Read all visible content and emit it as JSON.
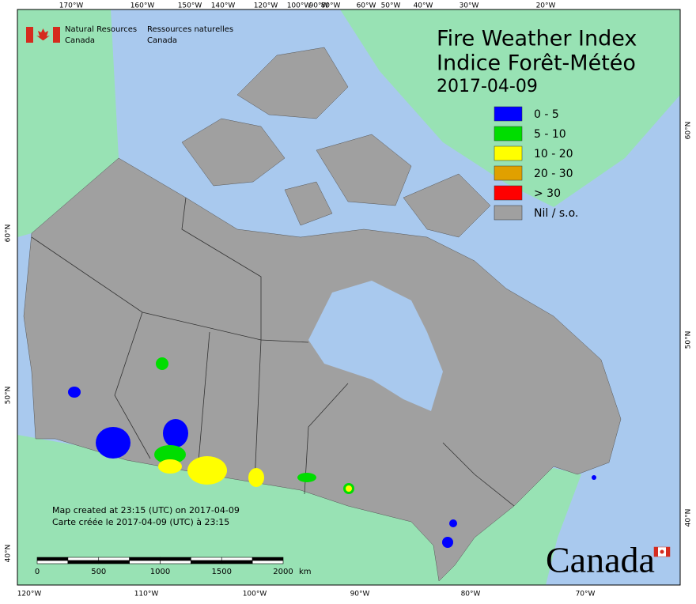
{
  "agency": {
    "en": [
      "Natural Resources",
      "Canada"
    ],
    "fr": [
      "Ressources naturelles",
      "Canada"
    ]
  },
  "header": {
    "title": "Fire Weather Index",
    "title_fr": "Indice Forêt-Météo",
    "date": "2017-04-09"
  },
  "legend": [
    {
      "label": "0 - 5",
      "color": "#0000ff"
    },
    {
      "label": "5 - 10",
      "color": "#00dd00"
    },
    {
      "label": "10 - 20",
      "color": "#ffff00"
    },
    {
      "label": "20 - 30",
      "color": "#e0a000"
    },
    {
      "label": "> 30",
      "color": "#ff0000"
    },
    {
      "label": "Nil / s.o.",
      "color": "#a0a0a0"
    }
  ],
  "notes": [
    "Map created at 23:15 (UTC) on 2017-04-09",
    "Carte créée le 2017-04-09 (UTC) à 23:15"
  ],
  "scale_bar": {
    "ticks": [
      "0",
      "500",
      "1000",
      "1500",
      "2000"
    ],
    "unit": "km"
  },
  "graticule": {
    "top": [
      "170°W",
      "160°W",
      "150°W",
      "140°W",
      "120°W",
      "100°W",
      "90°W",
      "80°W",
      "60°W",
      "50°W",
      "40°W",
      "30°W",
      "20°W"
    ],
    "bottom": [
      "120°W",
      "110°W",
      "100°W",
      "90°W",
      "80°W",
      "70°W"
    ],
    "left": [
      "60°N",
      "50°N",
      "40°N"
    ],
    "right": [
      "60°N",
      "50°N",
      "40°N"
    ]
  },
  "wordmark": "Canada"
}
